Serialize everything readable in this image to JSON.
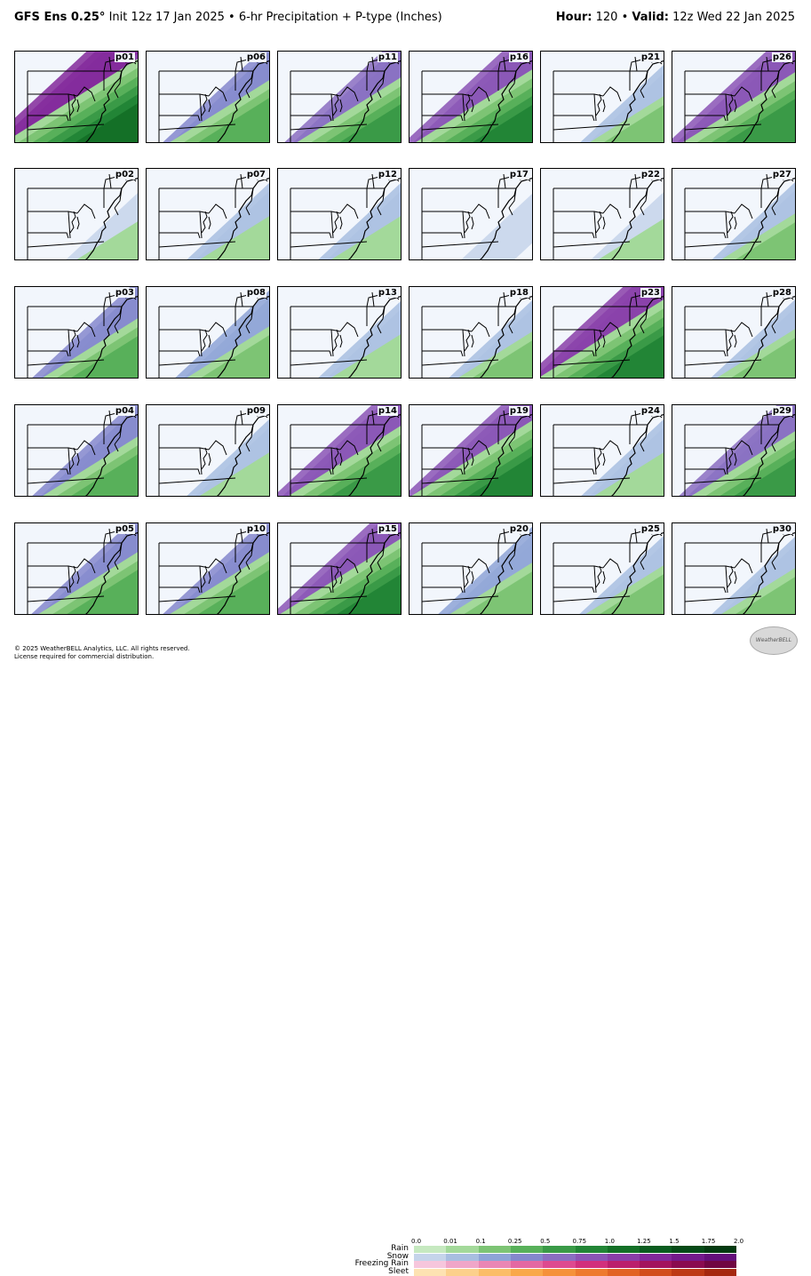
{
  "header": {
    "model": "GFS Ens 0.25°",
    "init": "Init 12z 17 Jan 2025",
    "sep": "•",
    "product": "6-hr Precipitation + P-type (Inches)",
    "hour_label": "Hour:",
    "hour_value": "120",
    "valid_label": "Valid:",
    "valid_value": "12z Wed 22 Jan 2025"
  },
  "panels": [
    [
      "p01",
      "p06",
      "p11",
      "p16",
      "p21",
      "p26"
    ],
    [
      "p02",
      "p07",
      "p12",
      "p17",
      "p22",
      "p27"
    ],
    [
      "p03",
      "p08",
      "p13",
      "p18",
      "p23",
      "p28"
    ],
    [
      "p04",
      "p09",
      "p14",
      "p19",
      "p24",
      "p29"
    ],
    [
      "p05",
      "p10",
      "p15",
      "p20",
      "p25",
      "p30"
    ]
  ],
  "panel_intensity": {
    "p01": 0.95,
    "p06": 0.55,
    "p11": 0.6,
    "p16": 0.75,
    "p21": 0.25,
    "p26": 0.7,
    "p02": 0.1,
    "p07": 0.2,
    "p12": 0.2,
    "p17": 0.05,
    "p22": 0.15,
    "p27": 0.25,
    "p03": 0.5,
    "p08": 0.35,
    "p13": 0.2,
    "p18": 0.25,
    "p23": 0.85,
    "p28": 0.3,
    "p04": 0.5,
    "p09": 0.2,
    "p14": 0.7,
    "p19": 0.8,
    "p24": 0.2,
    "p29": 0.6,
    "p05": 0.55,
    "p10": 0.55,
    "p15": 0.8,
    "p20": 0.35,
    "p25": 0.3,
    "p30": 0.25
  },
  "legend": {
    "ticks": [
      "0.0",
      "0.01",
      "0.1",
      "0.25",
      "0.5",
      "0.75",
      "1.0",
      "1.25",
      "1.5",
      "1.75",
      "2.0"
    ],
    "ptypes": [
      {
        "name": "Rain",
        "colors": [
          "#ffffff",
          "#c6e9c0",
          "#a3d99a",
          "#7dc474",
          "#58b05a",
          "#3a9a47",
          "#228536",
          "#147027",
          "#0b5c1f",
          "#064a17",
          "#033a10"
        ]
      },
      {
        "name": "Snow",
        "colors": [
          "#ffffff",
          "#c5d4ea",
          "#a8bee0",
          "#8ea3d6",
          "#8587cc",
          "#8b6dc1",
          "#8b54b5",
          "#8a3ea8",
          "#82289a",
          "#741a8b",
          "#640f7a"
        ]
      },
      {
        "name": "Freezing Rain",
        "colors": [
          "#ffffff",
          "#f6c6dc",
          "#f0a6c8",
          "#ea86b4",
          "#e468a2",
          "#de4a8f",
          "#d2307c",
          "#bb1f6c",
          "#a3135d",
          "#8a0b4f",
          "#700642"
        ]
      },
      {
        "name": "Sleet",
        "colors": [
          "#ffffff",
          "#fde2b2",
          "#fcd08c",
          "#fbbd68",
          "#f9a84a",
          "#f5913a",
          "#ee7a2e",
          "#e26324",
          "#d24d1c",
          "#bd3915",
          "#a5280f"
        ]
      }
    ]
  },
  "copyright": {
    "line1": "© 2025 WeatherBELL Analytics, LLC. All rights reserved.",
    "line2": "License required for commercial distribution."
  },
  "logo_text": "WeatherBELL"
}
